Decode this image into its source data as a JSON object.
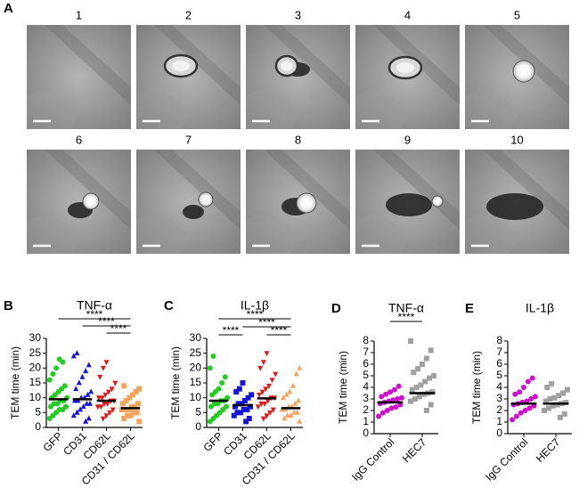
{
  "figure": {
    "panel": "A",
    "frames": [
      "1",
      "2",
      "3",
      "4",
      "5",
      "6",
      "7",
      "8",
      "9",
      "10"
    ]
  },
  "chart_data": [
    {
      "type": "strip",
      "panel": "B",
      "title": "TNF-α",
      "y_label": "TEM time (min)",
      "categories": [
        "GFP",
        "CD31",
        "CD62L",
        "CD31 / CD62L"
      ],
      "colors": [
        "#22cc22",
        "#1414d8",
        "#e01818",
        "#f5a25a"
      ],
      "markers": [
        "circle",
        "triangle-up",
        "triangle-down",
        "square"
      ],
      "values": [
        [
          3,
          4,
          5,
          6,
          6,
          7,
          7,
          8,
          8,
          9,
          9,
          10,
          10,
          11,
          12,
          13,
          14,
          16,
          18,
          20,
          23,
          22
        ],
        [
          2,
          3,
          4,
          5,
          6,
          7,
          8,
          8,
          9,
          9,
          10,
          10,
          11,
          12,
          13,
          15,
          17,
          19,
          21,
          24,
          25
        ],
        [
          3,
          4,
          5,
          6,
          7,
          7,
          8,
          8,
          9,
          9,
          10,
          10,
          11,
          12,
          13,
          15,
          17,
          20,
          22
        ],
        [
          2,
          3,
          4,
          4,
          5,
          5,
          6,
          6,
          6,
          7,
          7,
          8,
          8,
          9,
          10,
          11,
          12,
          13,
          14
        ]
      ],
      "means": [
        9.5,
        9.5,
        9,
        6.5
      ],
      "ylim": [
        0,
        30
      ],
      "yticks": [
        0,
        5,
        10,
        15,
        20,
        25,
        30
      ],
      "significance": [
        {
          "label": "****",
          "between": [
            "GFP",
            "CD31 / CD62L"
          ]
        },
        {
          "label": "****",
          "between": [
            "CD31",
            "CD31 / CD62L"
          ]
        },
        {
          "label": "****",
          "between": [
            "CD62L",
            "CD31 / CD62L"
          ]
        }
      ]
    },
    {
      "type": "strip",
      "panel": "C",
      "title": "IL-1β",
      "y_label": "TEM time (min)",
      "categories": [
        "GFP",
        "CD31",
        "CD62L",
        "CD31 / CD62L"
      ],
      "colors": [
        "#22cc22",
        "#1414d8",
        "#e01818",
        "#f5a25a"
      ],
      "markers": [
        "circle",
        "square",
        "triangle-down",
        "triangle-up"
      ],
      "values": [
        [
          2,
          3,
          4,
          5,
          6,
          7,
          7,
          8,
          8,
          9,
          9,
          10,
          11,
          12,
          13,
          15,
          17,
          20,
          24
        ],
        [
          2,
          3,
          4,
          5,
          5,
          6,
          6,
          7,
          7,
          8,
          8,
          9,
          10,
          11,
          12,
          13,
          15
        ],
        [
          3,
          4,
          5,
          6,
          7,
          8,
          8,
          9,
          10,
          10,
          11,
          12,
          13,
          14,
          16,
          18,
          20,
          22,
          25
        ],
        [
          2,
          3,
          4,
          4,
          5,
          5,
          6,
          6,
          7,
          7,
          8,
          9,
          10,
          11,
          12,
          14,
          18,
          20
        ]
      ],
      "means": [
        9,
        7.5,
        9.8,
        6.5
      ],
      "ylim": [
        0,
        30
      ],
      "yticks": [
        0,
        5,
        10,
        15,
        20,
        25,
        30
      ],
      "significance": [
        {
          "label": "****",
          "between": [
            "GFP",
            "CD31 / CD62L"
          ]
        },
        {
          "label": "****",
          "between": [
            "CD31",
            "CD31 / CD62L"
          ]
        },
        {
          "label": "****",
          "between": [
            "GFP",
            "CD31"
          ]
        },
        {
          "label": "****",
          "between": [
            "CD62L",
            "CD31 / CD62L"
          ]
        }
      ]
    },
    {
      "type": "strip",
      "panel": "D",
      "title": "TNF-α",
      "y_label": "TEM time (min)",
      "categories": [
        "IgG Control",
        "HEC7"
      ],
      "colors": [
        "#cc10cc",
        "#a0a0a0"
      ],
      "markers": [
        "circle",
        "square"
      ],
      "values": [
        [
          1.5,
          1.8,
          2,
          2.2,
          2.3,
          2.5,
          2.6,
          2.7,
          2.8,
          2.9,
          3,
          3.1,
          3.2,
          3.4,
          3.6,
          3.8,
          4.1
        ],
        [
          2,
          2.5,
          2.8,
          3,
          3.2,
          3.4,
          3.5,
          3.6,
          3.8,
          4,
          4.2,
          4.5,
          4.8,
          5,
          5.3,
          5.6,
          6,
          6.5,
          7.2,
          8
        ]
      ],
      "means": [
        2.7,
        3.5
      ],
      "ylim": [
        0,
        8
      ],
      "yticks": [
        0,
        1,
        2,
        3,
        4,
        5,
        6,
        7,
        8
      ],
      "significance": [
        {
          "label": "****",
          "between": [
            "IgG Control",
            "HEC7"
          ]
        }
      ]
    },
    {
      "type": "strip",
      "panel": "E",
      "title": "IL-1β",
      "y_label": "TEM time (min)",
      "categories": [
        "IgG Control",
        "HEC7"
      ],
      "colors": [
        "#cc10cc",
        "#a0a0a0"
      ],
      "markers": [
        "circle",
        "square"
      ],
      "values": [
        [
          1.2,
          1.5,
          1.8,
          2,
          2.2,
          2.4,
          2.5,
          2.6,
          2.7,
          2.8,
          3,
          3.2,
          3.4,
          3.6,
          4,
          4.5,
          4.8
        ],
        [
          1.4,
          1.7,
          2,
          2.2,
          2.4,
          2.5,
          2.6,
          2.7,
          2.8,
          3,
          3.1,
          3.3,
          3.5,
          3.8,
          4,
          4.3
        ]
      ],
      "means": [
        2.6,
        2.6
      ],
      "ylim": [
        0,
        8
      ],
      "yticks": [
        0,
        1,
        2,
        3,
        4,
        5,
        6,
        7,
        8
      ],
      "significance": []
    }
  ]
}
